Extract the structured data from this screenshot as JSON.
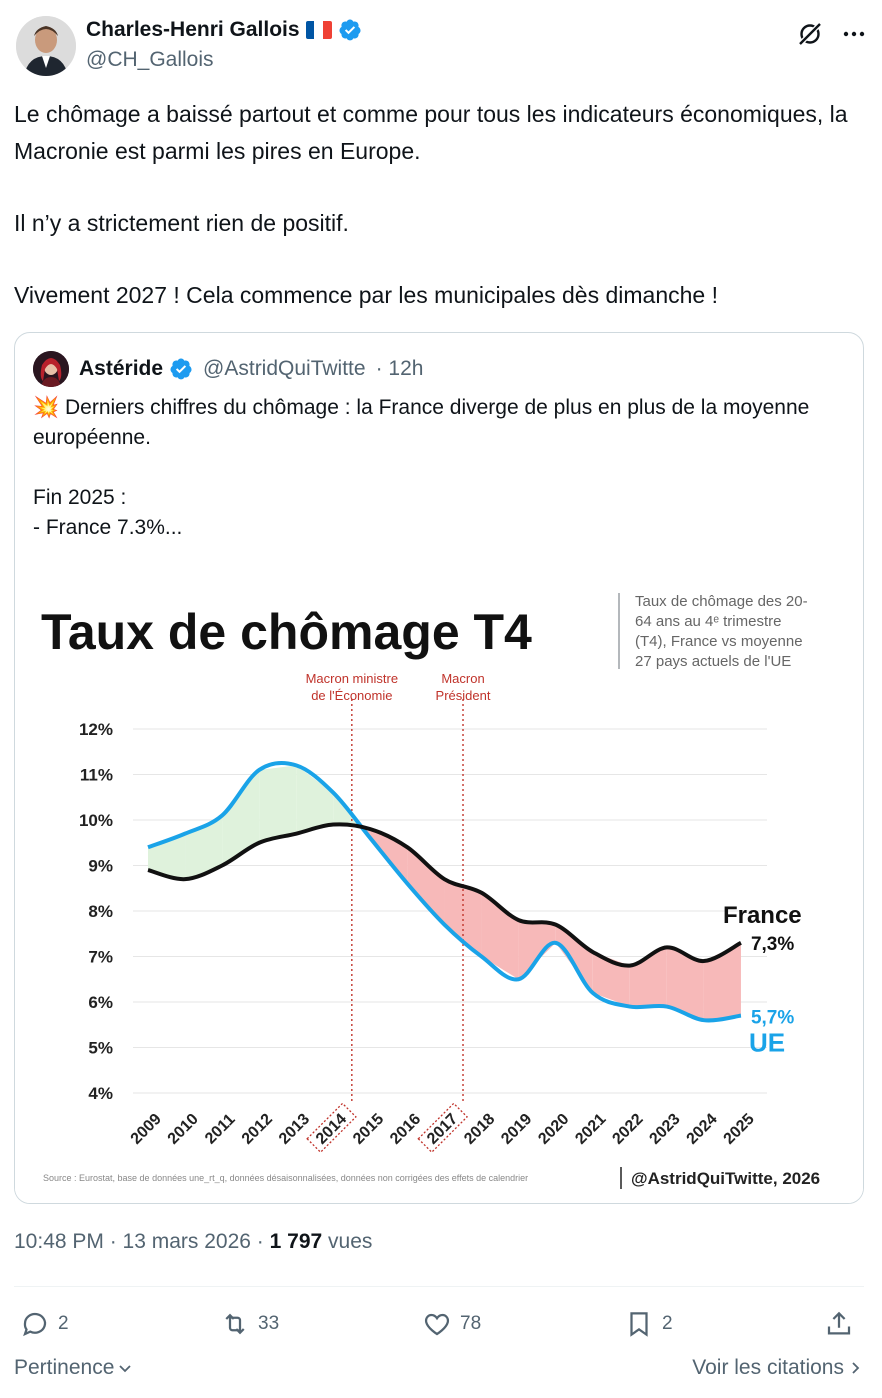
{
  "author": {
    "display_name": "Charles-Henri Gallois",
    "handle": "@CH_Gallois",
    "flag_colors": [
      "#0055a4",
      "#ffffff",
      "#ef4135"
    ]
  },
  "icons": {
    "grok": "grok-icon",
    "more": "more-icon",
    "verified": "verified-badge-icon"
  },
  "tweet": {
    "paragraphs": [
      "Le chômage a baissé partout et comme pour tous les indicateurs économiques, la Macronie est parmi les pires en Europe.",
      "Il n’y a strictement rien de positif.",
      "Vivement 2027 ! Cela commence par les municipales dès dimanche !"
    ]
  },
  "quote": {
    "display_name": "Astéride",
    "handle": "@AstridQuiTwitte",
    "time": "· 12h",
    "text_line1": "💥 Derniers chiffres du chômage : la France diverge de plus en plus de la moyenne européenne.",
    "text_line2": "Fin 2025 :",
    "text_line3": "- France 7.3%..."
  },
  "chart_data": {
    "type": "line",
    "title": "Taux de chômage T4",
    "subtitle": [
      "Taux de chômage des 20-",
      "64 ans au 4ᵉ trimestre",
      "(T4), France vs moyenne",
      "27 pays actuels de l'UE"
    ],
    "x": [
      2009,
      2010,
      2011,
      2012,
      2013,
      2014,
      2015,
      2016,
      2017,
      2018,
      2019,
      2020,
      2021,
      2022,
      2023,
      2024,
      2025
    ],
    "x_labels": [
      "2009",
      "2010",
      "2011",
      "2012",
      "2013",
      "2014",
      "2015",
      "2016",
      "2017",
      "2018",
      "2019",
      "2020",
      "2021",
      "2022",
      "2023",
      "2024",
      "2025"
    ],
    "highlight_years": [
      "2014",
      "2017"
    ],
    "y_ticks": [
      "12%",
      "11%",
      "10%",
      "9%",
      "8%",
      "7%",
      "6%",
      "5%",
      "4%"
    ],
    "y_tick_values": [
      12,
      11,
      10,
      9,
      8,
      7,
      6,
      5,
      4
    ],
    "ylim": [
      4,
      12
    ],
    "series": [
      {
        "name": "France",
        "end_label": "7,3%",
        "color": "#111111",
        "values": [
          8.9,
          8.7,
          9.0,
          9.5,
          9.7,
          9.9,
          9.8,
          9.4,
          8.7,
          8.4,
          7.8,
          7.7,
          7.1,
          6.8,
          7.2,
          6.9,
          7.3
        ]
      },
      {
        "name": "UE",
        "end_label": "5,7%",
        "color": "#1aa3e8",
        "values": [
          9.4,
          9.7,
          10.1,
          11.1,
          11.2,
          10.6,
          9.6,
          8.6,
          7.7,
          7.0,
          6.5,
          7.3,
          6.2,
          5.9,
          5.9,
          5.6,
          5.7
        ]
      }
    ],
    "fill_colors": {
      "ue_above": "#dff2dc",
      "france_above": "#f7b9b9"
    },
    "annotations": [
      {
        "x": 2014.5,
        "lines": [
          "Macron ministre",
          "de l'Économie"
        ],
        "color": "#c0332b"
      },
      {
        "x": 2017.5,
        "lines": [
          "Macron",
          "Président"
        ],
        "color": "#c0332b"
      }
    ],
    "source": "Source : Eurostat, base de données une_rt_q, données désaisonnalisées, données non corrigées des effets de calendrier",
    "credit": "@AstridQuiTwitte, 2026",
    "grid": true
  },
  "meta": {
    "time": "10:48 PM · 13 mars 2026 · ",
    "views_count": "1 797",
    "views_label": " vues"
  },
  "actions": {
    "replies": "2",
    "reposts": "33",
    "likes": "78",
    "bookmarks": "2"
  },
  "footer": {
    "sort_label": "Pertinence",
    "quotes_label": "Voir les citations"
  }
}
